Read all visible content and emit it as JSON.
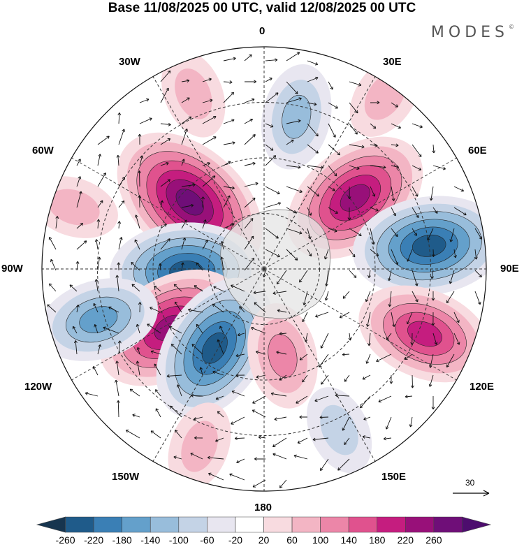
{
  "title": "Base 11/08/2025 00 UTC, valid 12/08/2025 00 UTC",
  "brand": "MODES",
  "brand_mark": "©",
  "longitude_labels": {
    "lon0": "0",
    "lon30e": "30E",
    "lon60e": "60E",
    "lon90e": "90E",
    "lon120e": "120E",
    "lon150e": "150E",
    "lon180": "180",
    "lon150w": "150W",
    "lon120w": "120W",
    "lon90w": "90W",
    "lon60w": "60W",
    "lon30w": "30W"
  },
  "vector_scale_label": "30",
  "colorbar": {
    "colors": [
      "#17354f",
      "#1f5b8a",
      "#3a7fb5",
      "#64a0cb",
      "#98bddb",
      "#c4d3e6",
      "#e8e6f0",
      "#ffffff",
      "#f8dbe0",
      "#f3b5c4",
      "#ec86a8",
      "#e0528e",
      "#c51d7f",
      "#981079",
      "#6f0e78",
      "#4d0d6e"
    ],
    "labels": [
      "-260",
      "-220",
      "-180",
      "-140",
      "-100",
      "-60",
      "-20",
      "20",
      "60",
      "100",
      "140",
      "180",
      "220",
      "260"
    ]
  },
  "map_data": {
    "projection": "south-polar-stereographic",
    "field": "geopotential height anomaly (shaded) with wind vectors",
    "anomalies": [
      {
        "lon": -48,
        "r": 0.45,
        "value": 260
      },
      {
        "lon": 52,
        "r": 0.52,
        "value": 250
      },
      {
        "lon": 82,
        "r": 0.75,
        "value": -230
      },
      {
        "lon": 112,
        "r": 0.78,
        "value": 200
      },
      {
        "lon": -92,
        "r": 0.35,
        "value": -230
      },
      {
        "lon": -122,
        "r": 0.5,
        "value": 240
      },
      {
        "lon": -148,
        "r": 0.42,
        "value": -230
      },
      {
        "lon": -107,
        "r": 0.78,
        "value": -150
      },
      {
        "lon": 168,
        "r": 0.4,
        "value": 130
      },
      {
        "lon": 12,
        "r": 0.7,
        "value": -110
      },
      {
        "lon": -22,
        "r": 0.85,
        "value": 80
      },
      {
        "lon": 35,
        "r": 0.95,
        "value": 90
      },
      {
        "lon": -72,
        "r": 0.9,
        "value": 70
      },
      {
        "lon": 155,
        "r": 0.8,
        "value": -70
      },
      {
        "lon": -160,
        "r": 0.85,
        "value": 60
      }
    ]
  }
}
